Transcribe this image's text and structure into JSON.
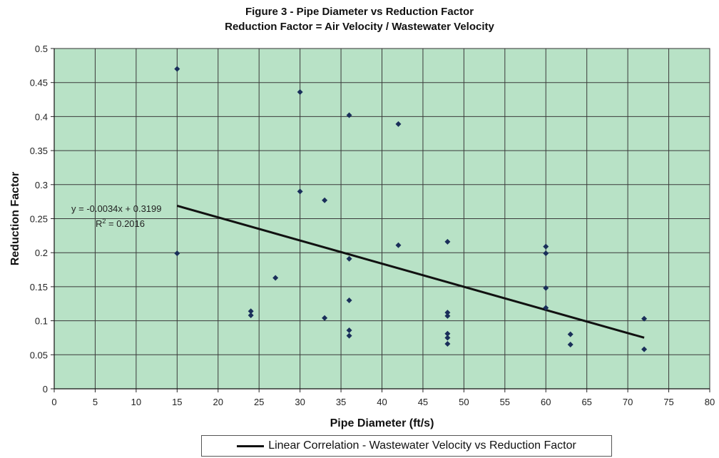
{
  "chart_data": {
    "type": "scatter",
    "title": "Figure 3 - Pipe Diameter vs Reduction Factor",
    "subtitle": "Reduction Factor = Air Velocity / Wastewater Velocity",
    "xlabel": "Pipe Diameter (ft/s)",
    "ylabel": "Reduction Factor",
    "xlim": [
      0,
      80
    ],
    "ylim": [
      0,
      0.5
    ],
    "x_ticks": [
      "0",
      "5",
      "10",
      "15",
      "20",
      "25",
      "30",
      "35",
      "40",
      "45",
      "50",
      "55",
      "60",
      "65",
      "70",
      "75",
      "80"
    ],
    "y_ticks": [
      "0",
      "0.05",
      "0.1",
      "0.15",
      "0.2",
      "0.25",
      "0.3",
      "0.35",
      "0.4",
      "0.45",
      "0.5"
    ],
    "grid": true,
    "background_color": "#b8e2c6",
    "marker_color": "#1a2f5a",
    "series": [
      {
        "points": [
          [
            15,
            0.47
          ],
          [
            15,
            0.199
          ],
          [
            24,
            0.114
          ],
          [
            24,
            0.108
          ],
          [
            27,
            0.163
          ],
          [
            30,
            0.436
          ],
          [
            30,
            0.29
          ],
          [
            33,
            0.277
          ],
          [
            33,
            0.104
          ],
          [
            36,
            0.402
          ],
          [
            36,
            0.191
          ],
          [
            36,
            0.13
          ],
          [
            36,
            0.086
          ],
          [
            36,
            0.078
          ],
          [
            42,
            0.389
          ],
          [
            42,
            0.211
          ],
          [
            48,
            0.216
          ],
          [
            48,
            0.112
          ],
          [
            48,
            0.107
          ],
          [
            48,
            0.081
          ],
          [
            48,
            0.075
          ],
          [
            48,
            0.066
          ],
          [
            60,
            0.209
          ],
          [
            60,
            0.199
          ],
          [
            60,
            0.148
          ],
          [
            60,
            0.119
          ],
          [
            63,
            0.08
          ],
          [
            63,
            0.065
          ],
          [
            72,
            0.103
          ],
          [
            72,
            0.058
          ]
        ]
      }
    ],
    "trendline": {
      "name": "Linear Correlation - Wastewater Velocity vs Reduction Factor",
      "slope": -0.0034,
      "intercept": 0.3199,
      "x_range": [
        15,
        72
      ],
      "equation": "y = -0.0034x + 0.3199",
      "r2_prefix": "R",
      "r2_sup": "2",
      "r2_value": " = 0.2016"
    },
    "legend_position": "bottom"
  }
}
